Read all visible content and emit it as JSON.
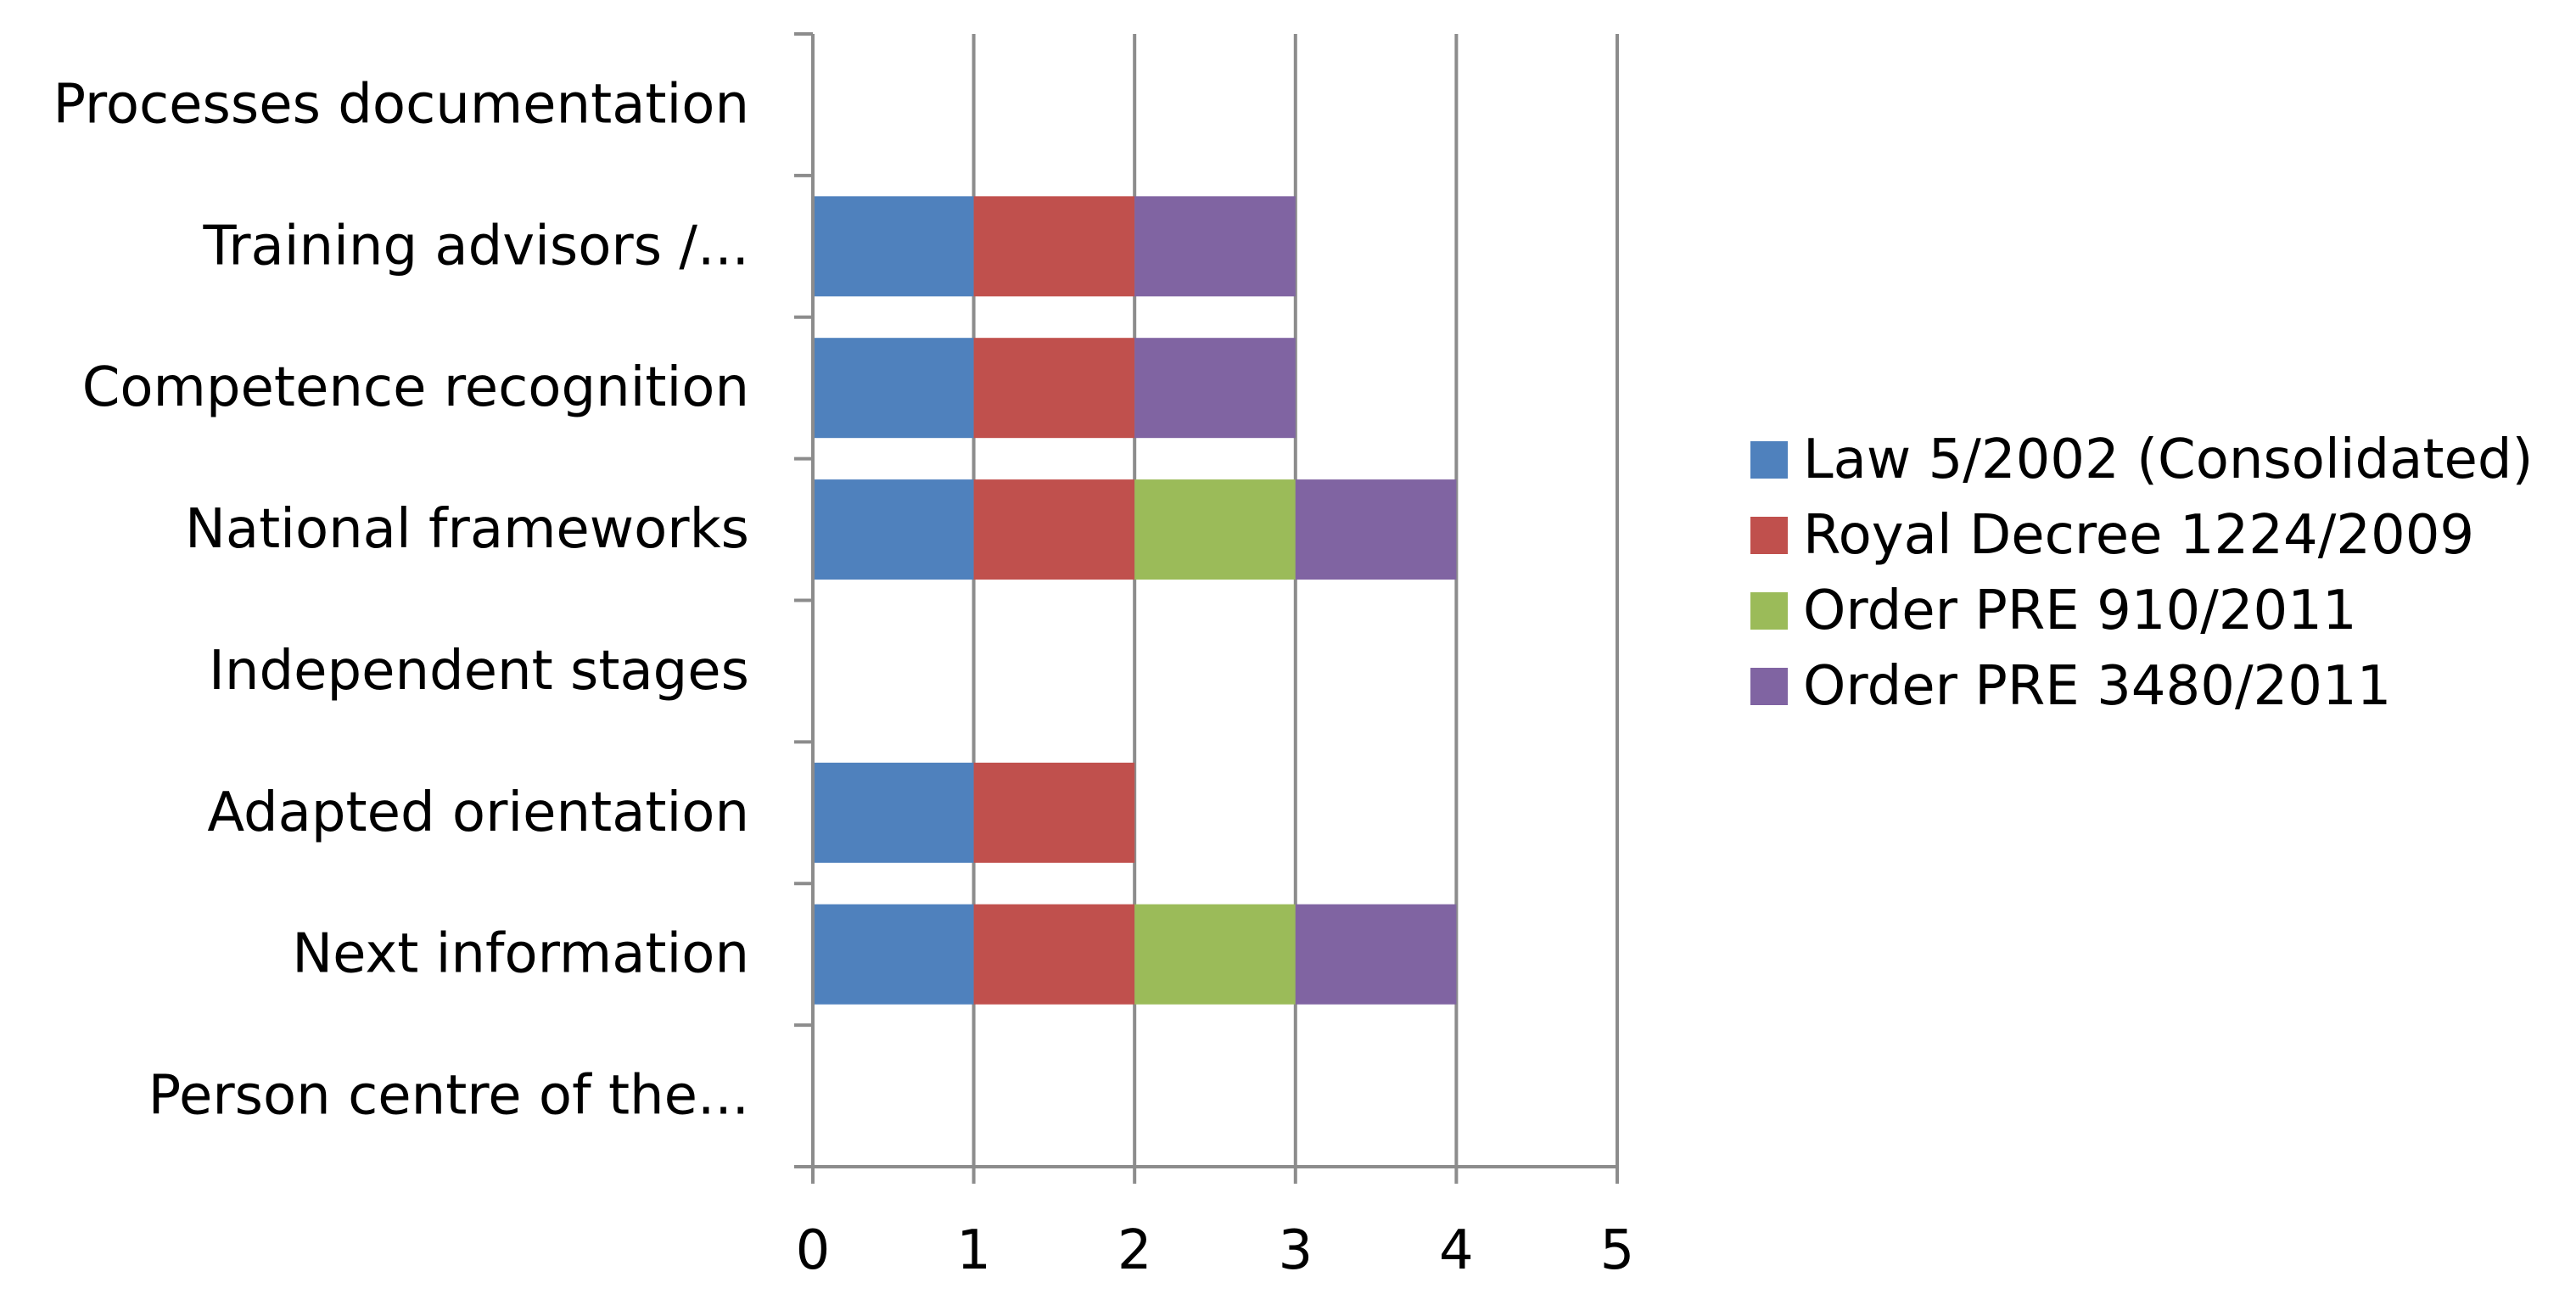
{
  "chart_data": {
    "type": "bar",
    "orientation": "horizontal",
    "stacked": true,
    "categories": [
      "Person centre of the...",
      "Next information",
      "Adapted orientation",
      "Independent stages",
      "National frameworks",
      "Competence recognition",
      "Training advisors /...",
      "Processes documentation"
    ],
    "series": [
      {
        "name": "Law 5/2002 (Consolidated)",
        "color": "#4f81bd",
        "values": [
          0,
          1,
          1,
          0,
          1,
          1,
          1,
          0
        ]
      },
      {
        "name": "Royal Decree 1224/2009",
        "color": "#c0504d",
        "values": [
          0,
          1,
          1,
          0,
          1,
          1,
          1,
          0
        ]
      },
      {
        "name": "Order PRE 910/2011",
        "color": "#9bbb59",
        "values": [
          0,
          1,
          0,
          0,
          1,
          0,
          0,
          0
        ]
      },
      {
        "name": "Order PRE 3480/2011",
        "color": "#8064a2",
        "values": [
          0,
          1,
          0,
          0,
          1,
          1,
          1,
          0
        ]
      }
    ],
    "x_ticks": [
      "0",
      "1",
      "2",
      "3",
      "4",
      "5"
    ],
    "xlim": [
      0,
      5
    ],
    "grid": "vertical",
    "legend_position": "right",
    "title": "",
    "xlabel": "",
    "ylabel": ""
  }
}
